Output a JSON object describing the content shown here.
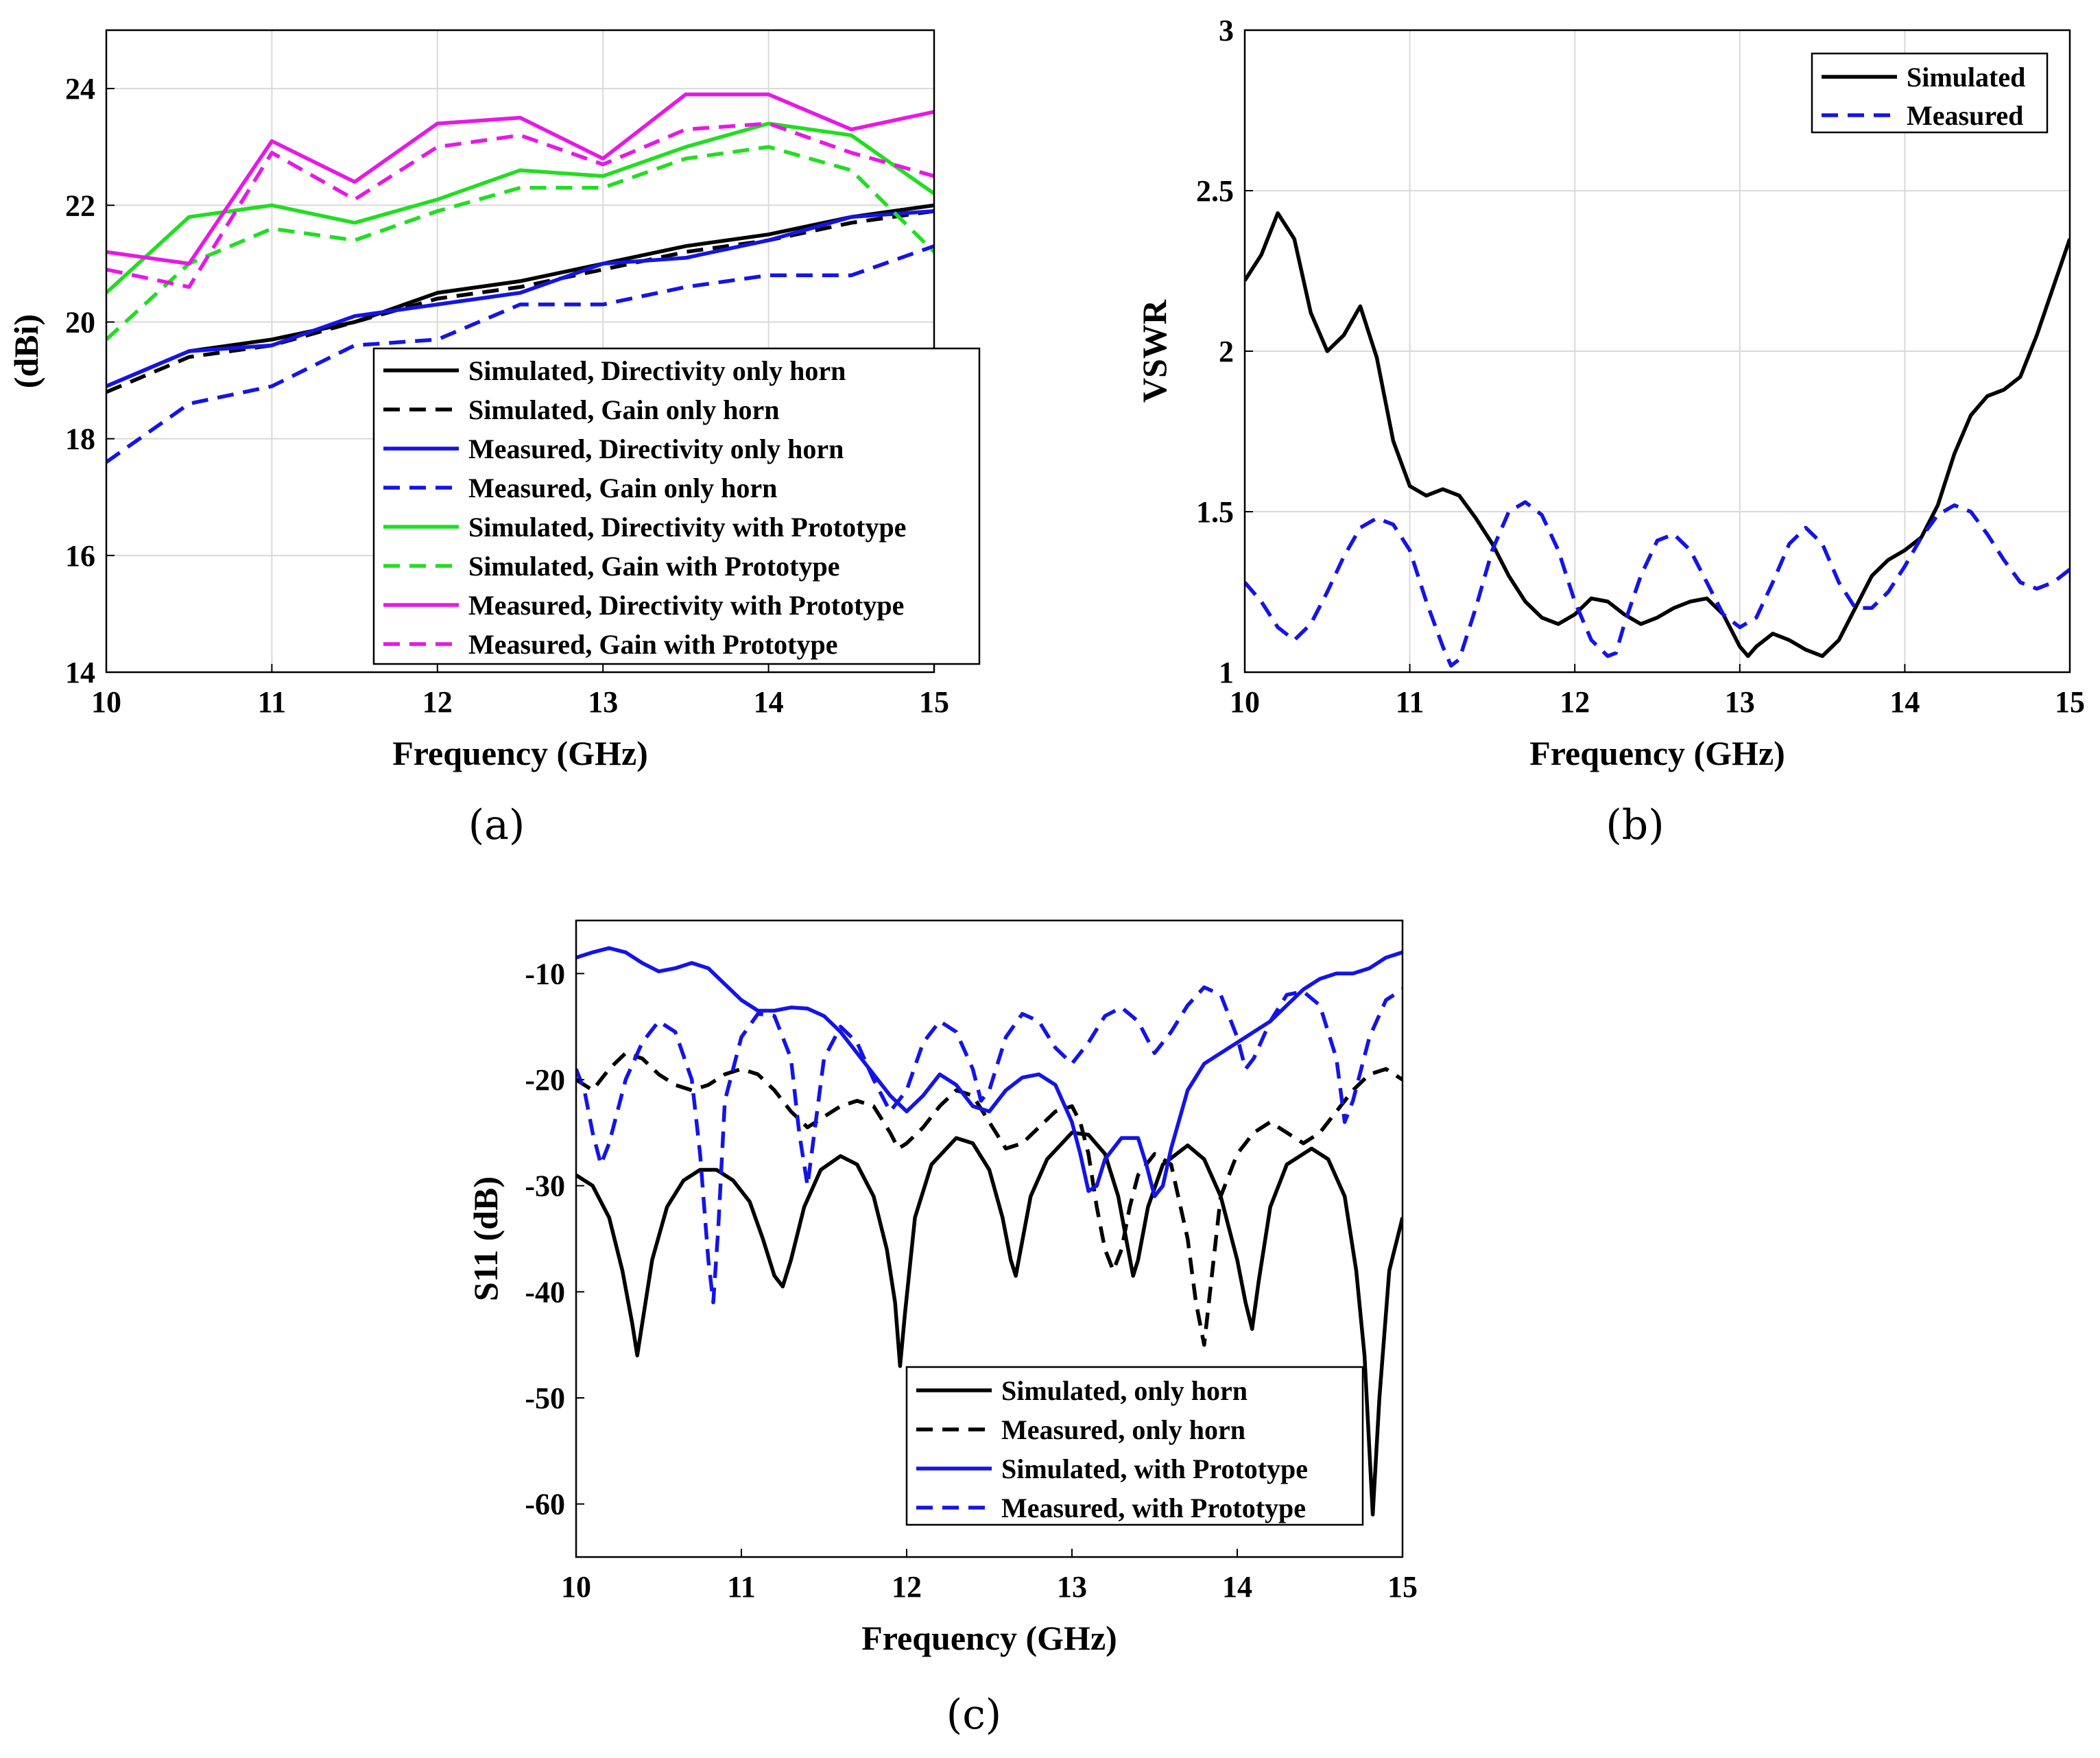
{
  "chart_data": [
    {
      "id": "a",
      "type": "line",
      "panel_label": "(a)",
      "xlabel": "Frequency (GHz)",
      "ylabel": "(dBi)",
      "xlim": [
        10,
        15
      ],
      "ylim": [
        14,
        25
      ],
      "xticks": [
        10,
        11,
        12,
        13,
        14,
        15
      ],
      "yticks": [
        14,
        16,
        18,
        20,
        22,
        24
      ],
      "grid": true,
      "legend_position": "lower-right",
      "x": [
        10,
        10.5,
        11,
        11.5,
        12,
        12.5,
        13,
        13.5,
        14,
        14.5,
        15
      ],
      "series": [
        {
          "name": "Simulated, Directivity only horn",
          "color": "#000000",
          "dash": "solid",
          "values": [
            18.9,
            19.5,
            19.7,
            20.0,
            20.5,
            20.7,
            21.0,
            21.3,
            21.5,
            21.8,
            22.0
          ]
        },
        {
          "name": "Simulated, Gain only horn",
          "color": "#000000",
          "dash": "dashed",
          "values": [
            18.8,
            19.4,
            19.6,
            20.0,
            20.4,
            20.6,
            20.9,
            21.2,
            21.4,
            21.7,
            21.9
          ]
        },
        {
          "name": "Measured, Directivity only horn",
          "color": "#1414e6",
          "dash": "solid",
          "values": [
            18.9,
            19.5,
            19.6,
            20.1,
            20.3,
            20.5,
            21.0,
            21.1,
            21.4,
            21.8,
            21.9
          ]
        },
        {
          "name": "Measured, Gain only horn",
          "color": "#1414e6",
          "dash": "dashed",
          "values": [
            17.6,
            18.6,
            18.9,
            19.6,
            19.7,
            20.3,
            20.3,
            20.6,
            20.8,
            20.8,
            21.3
          ]
        },
        {
          "name": "Simulated, Directivity with Prototype",
          "color": "#22dd22",
          "dash": "solid",
          "values": [
            20.5,
            21.8,
            22.0,
            21.7,
            22.1,
            22.6,
            22.5,
            23.0,
            23.4,
            23.2,
            22.2
          ]
        },
        {
          "name": "Simulated, Gain with Prototype",
          "color": "#22dd22",
          "dash": "dashed",
          "values": [
            19.7,
            21.0,
            21.6,
            21.4,
            21.9,
            22.3,
            22.3,
            22.8,
            23.0,
            22.6,
            21.2
          ]
        },
        {
          "name": "Measured, Directivity with Prototype",
          "color": "#e619e6",
          "dash": "solid",
          "values": [
            21.2,
            21.0,
            23.1,
            22.4,
            23.4,
            23.5,
            22.8,
            23.9,
            23.9,
            23.3,
            23.6
          ]
        },
        {
          "name": "Measured, Gain with Prototype",
          "color": "#e619e6",
          "dash": "dashed",
          "values": [
            20.9,
            20.6,
            22.9,
            22.1,
            23.0,
            23.2,
            22.7,
            23.3,
            23.4,
            22.9,
            22.5
          ]
        }
      ]
    },
    {
      "id": "b",
      "type": "line",
      "panel_label": "(b)",
      "xlabel": "Frequency (GHz)",
      "ylabel": "VSWR",
      "xlim": [
        10,
        15
      ],
      "ylim": [
        1,
        3
      ],
      "xticks": [
        10,
        11,
        12,
        13,
        14,
        15
      ],
      "yticks": [
        1,
        1.5,
        2,
        2.5,
        3
      ],
      "grid": true,
      "legend_position": "top-right",
      "series": [
        {
          "name": "Simulated",
          "color": "#000000",
          "dash": "solid",
          "x": [
            10,
            10.1,
            10.2,
            10.3,
            10.4,
            10.5,
            10.6,
            10.7,
            10.8,
            10.9,
            11.0,
            11.1,
            11.2,
            11.3,
            11.4,
            11.5,
            11.6,
            11.7,
            11.8,
            11.9,
            12.0,
            12.1,
            12.2,
            12.3,
            12.4,
            12.5,
            12.6,
            12.7,
            12.8,
            12.9,
            13.0,
            13.05,
            13.1,
            13.2,
            13.3,
            13.4,
            13.5,
            13.6,
            13.7,
            13.8,
            13.9,
            14.0,
            14.1,
            14.2,
            14.3,
            14.4,
            14.5,
            14.6,
            14.7,
            14.8,
            14.9,
            15.0
          ],
          "values": [
            2.22,
            2.3,
            2.43,
            2.35,
            2.12,
            2.0,
            2.05,
            2.14,
            1.98,
            1.72,
            1.58,
            1.55,
            1.57,
            1.55,
            1.48,
            1.4,
            1.3,
            1.22,
            1.17,
            1.15,
            1.18,
            1.23,
            1.22,
            1.18,
            1.15,
            1.17,
            1.2,
            1.22,
            1.23,
            1.18,
            1.08,
            1.05,
            1.08,
            1.12,
            1.1,
            1.07,
            1.05,
            1.1,
            1.2,
            1.3,
            1.35,
            1.38,
            1.42,
            1.52,
            1.68,
            1.8,
            1.86,
            1.88,
            1.92,
            2.05,
            2.2,
            2.35
          ]
        },
        {
          "name": "Measured",
          "color": "#1414e6",
          "dash": "dashed",
          "x": [
            10,
            10.1,
            10.2,
            10.3,
            10.4,
            10.5,
            10.6,
            10.7,
            10.8,
            10.9,
            11.0,
            11.1,
            11.2,
            11.25,
            11.3,
            11.4,
            11.5,
            11.6,
            11.7,
            11.8,
            11.9,
            12.0,
            12.1,
            12.2,
            12.25,
            12.3,
            12.4,
            12.5,
            12.6,
            12.7,
            12.8,
            12.9,
            13.0,
            13.1,
            13.2,
            13.3,
            13.4,
            13.5,
            13.6,
            13.7,
            13.8,
            13.9,
            14.0,
            14.1,
            14.2,
            14.3,
            14.4,
            14.5,
            14.6,
            14.7,
            14.8,
            14.9,
            15.0
          ],
          "values": [
            1.28,
            1.22,
            1.14,
            1.1,
            1.15,
            1.25,
            1.36,
            1.45,
            1.48,
            1.46,
            1.38,
            1.22,
            1.08,
            1.02,
            1.04,
            1.2,
            1.38,
            1.5,
            1.53,
            1.49,
            1.38,
            1.22,
            1.1,
            1.05,
            1.06,
            1.15,
            1.3,
            1.41,
            1.43,
            1.38,
            1.28,
            1.18,
            1.14,
            1.17,
            1.28,
            1.4,
            1.45,
            1.4,
            1.28,
            1.2,
            1.2,
            1.25,
            1.33,
            1.42,
            1.49,
            1.52,
            1.5,
            1.43,
            1.35,
            1.28,
            1.26,
            1.28,
            1.32
          ]
        }
      ]
    },
    {
      "id": "c",
      "type": "line",
      "panel_label": "(c)",
      "xlabel": "Frequency (GHz)",
      "ylabel": "S11 (dB)",
      "xlim": [
        10,
        15
      ],
      "ylim": [
        -65,
        -5
      ],
      "xticks": [
        10,
        11,
        12,
        13,
        14,
        15
      ],
      "yticks": [
        -60,
        -50,
        -40,
        -30,
        -20,
        -10
      ],
      "grid": false,
      "legend_position": "bottom-right",
      "series": [
        {
          "name": "Simulated, only horn",
          "color": "#000000",
          "dash": "solid",
          "x": [
            10,
            10.1,
            10.2,
            10.28,
            10.34,
            10.37,
            10.4,
            10.46,
            10.55,
            10.65,
            10.75,
            10.85,
            10.95,
            11.05,
            11.13,
            11.2,
            11.25,
            11.3,
            11.38,
            11.48,
            11.6,
            11.7,
            11.8,
            11.88,
            11.93,
            11.96,
            11.99,
            12.05,
            12.15,
            12.3,
            12.4,
            12.5,
            12.58,
            12.63,
            12.66,
            12.69,
            12.75,
            12.85,
            13.0,
            13.1,
            13.2,
            13.28,
            13.34,
            13.37,
            13.4,
            13.46,
            13.55,
            13.7,
            13.8,
            13.9,
            14.0,
            14.05,
            14.09,
            14.13,
            14.2,
            14.3,
            14.45,
            14.55,
            14.65,
            14.72,
            14.77,
            14.8,
            14.82,
            14.86,
            14.92,
            15.0
          ],
          "values": [
            -29,
            -30,
            -33,
            -38,
            -43,
            -46,
            -43,
            -37,
            -32,
            -29.5,
            -28.5,
            -28.5,
            -29.5,
            -31.5,
            -35,
            -38.5,
            -39.5,
            -37,
            -32,
            -28.5,
            -27.2,
            -28,
            -31,
            -36,
            -41,
            -47,
            -42,
            -33,
            -28,
            -25.5,
            -26,
            -28.5,
            -33,
            -37,
            -38.5,
            -36,
            -31,
            -27.5,
            -25,
            -25.2,
            -27,
            -31,
            -36,
            -38.5,
            -37,
            -32,
            -28,
            -26.2,
            -27.5,
            -31,
            -37,
            -41,
            -43.5,
            -39,
            -32,
            -28,
            -26.5,
            -27.5,
            -31,
            -38,
            -46,
            -55,
            -61,
            -50,
            -38,
            -33
          ]
        },
        {
          "name": "Measured, only horn",
          "color": "#000000",
          "dash": "dashed",
          "x": [
            10,
            10.1,
            10.2,
            10.3,
            10.4,
            10.5,
            10.6,
            10.7,
            10.8,
            10.9,
            11.0,
            11.1,
            11.2,
            11.3,
            11.4,
            11.5,
            11.6,
            11.7,
            11.8,
            11.9,
            11.95,
            12.0,
            12.1,
            12.2,
            12.3,
            12.4,
            12.5,
            12.6,
            12.7,
            12.8,
            12.9,
            13.0,
            13.05,
            13.1,
            13.15,
            13.2,
            13.25,
            13.3,
            13.35,
            13.4,
            13.5,
            13.6,
            13.7,
            13.75,
            13.8,
            13.85,
            13.9,
            14.0,
            14.1,
            14.2,
            14.3,
            14.4,
            14.5,
            14.6,
            14.7,
            14.8,
            14.9,
            15.0
          ],
          "values": [
            -20,
            -21,
            -19,
            -17.5,
            -18,
            -19.5,
            -20.5,
            -21,
            -20.5,
            -19.5,
            -19,
            -19.5,
            -21,
            -23,
            -24.5,
            -23.5,
            -22.5,
            -22,
            -22.5,
            -25,
            -26.5,
            -26,
            -24.5,
            -22.5,
            -21,
            -21.5,
            -24,
            -26.5,
            -26,
            -24.5,
            -23,
            -22.5,
            -24,
            -27,
            -32,
            -36,
            -38,
            -36,
            -32,
            -29,
            -27,
            -28,
            -35,
            -41,
            -45,
            -38,
            -31,
            -27,
            -25,
            -24,
            -25,
            -26,
            -25,
            -23,
            -21,
            -19.5,
            -19,
            -20
          ]
        },
        {
          "name": "Simulated, with Prototype",
          "color": "#1414e6",
          "dash": "solid",
          "x": [
            10,
            10.1,
            10.2,
            10.3,
            10.4,
            10.5,
            10.6,
            10.7,
            10.8,
            10.9,
            11.0,
            11.1,
            11.2,
            11.3,
            11.4,
            11.5,
            11.6,
            11.7,
            11.8,
            11.9,
            12.0,
            12.1,
            12.2,
            12.3,
            12.4,
            12.5,
            12.6,
            12.7,
            12.8,
            12.9,
            13.0,
            13.05,
            13.1,
            13.15,
            13.2,
            13.3,
            13.4,
            13.45,
            13.5,
            13.55,
            13.6,
            13.7,
            13.8,
            13.9,
            14.0,
            14.1,
            14.2,
            14.3,
            14.4,
            14.5,
            14.6,
            14.7,
            14.8,
            14.9,
            15.0
          ],
          "values": [
            -8.5,
            -8,
            -7.6,
            -8,
            -9,
            -9.8,
            -9.5,
            -9,
            -9.5,
            -11,
            -12.5,
            -13.5,
            -13.5,
            -13.2,
            -13.3,
            -14,
            -15.5,
            -17.5,
            -19.5,
            -21.5,
            -23,
            -21.5,
            -19.5,
            -20.5,
            -22.5,
            -23,
            -21,
            -19.8,
            -19.5,
            -20.5,
            -24,
            -27,
            -30.5,
            -30,
            -27.5,
            -25.5,
            -25.5,
            -28,
            -31,
            -30,
            -26.5,
            -21,
            -18.5,
            -17.5,
            -16.5,
            -15.5,
            -14.5,
            -13,
            -11.5,
            -10.5,
            -10,
            -10,
            -9.5,
            -8.5,
            -8
          ]
        },
        {
          "name": "Measured, with Prototype",
          "color": "#1414e6",
          "dash": "dashed",
          "x": [
            10,
            10.05,
            10.1,
            10.15,
            10.2,
            10.3,
            10.4,
            10.5,
            10.6,
            10.7,
            10.75,
            10.8,
            10.83,
            10.86,
            10.9,
            11.0,
            11.1,
            11.2,
            11.3,
            11.35,
            11.4,
            11.45,
            11.5,
            11.6,
            11.7,
            11.8,
            11.9,
            12.0,
            12.1,
            12.2,
            12.3,
            12.4,
            12.45,
            12.5,
            12.6,
            12.7,
            12.8,
            12.9,
            13.0,
            13.1,
            13.2,
            13.3,
            13.4,
            13.5,
            13.6,
            13.7,
            13.8,
            13.9,
            14.0,
            14.05,
            14.1,
            14.2,
            14.3,
            14.4,
            14.5,
            14.6,
            14.65,
            14.7,
            14.8,
            14.9,
            15.0
          ],
          "values": [
            -19,
            -21,
            -25,
            -28,
            -26,
            -20,
            -16.5,
            -14.5,
            -15.5,
            -20,
            -27,
            -37,
            -41,
            -34,
            -22,
            -16,
            -13.8,
            -14,
            -18,
            -25,
            -30,
            -24,
            -18,
            -15,
            -16.5,
            -20,
            -23,
            -21,
            -16.5,
            -14.5,
            -15.5,
            -19,
            -22,
            -21,
            -16,
            -13.8,
            -14.5,
            -17,
            -18.5,
            -16.5,
            -14,
            -13.2,
            -14.5,
            -17.5,
            -15.5,
            -13,
            -11.3,
            -12,
            -16,
            -19,
            -18,
            -14.5,
            -12,
            -11.7,
            -13,
            -18,
            -24,
            -22,
            -16,
            -12.5,
            -11.5
          ]
        }
      ]
    }
  ]
}
